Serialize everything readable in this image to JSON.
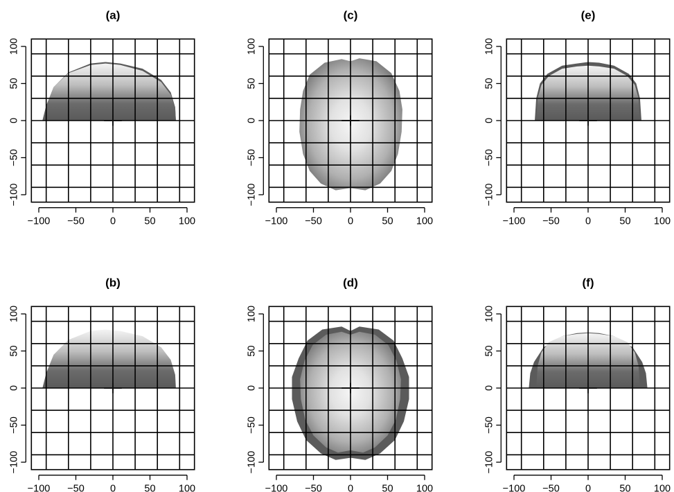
{
  "figure": {
    "panels": [
      {
        "title": "(a)",
        "view": "lateral"
      },
      {
        "title": "(b)",
        "view": "lateral"
      },
      {
        "title": "(c)",
        "view": "superior"
      },
      {
        "title": "(d)",
        "view": "superior"
      },
      {
        "title": "(e)",
        "view": "coronal"
      },
      {
        "title": "(f)",
        "view": "coronal"
      }
    ]
  },
  "chart_data": [
    {
      "type": "other",
      "panel": "(a)",
      "title": "(a)",
      "xlim": [
        -110,
        110
      ],
      "ylim": [
        -110,
        110
      ],
      "x_ticks": [
        -100,
        -50,
        0,
        50,
        100
      ],
      "y_ticks": [
        -100,
        -50,
        0,
        50,
        100
      ],
      "grid_x": [
        -90,
        -60,
        -30,
        0,
        30,
        60,
        90
      ],
      "grid_y": [
        -90,
        -60,
        -30,
        0,
        30,
        60,
        90
      ],
      "shape": {
        "outline": [
          [
            -95,
            0
          ],
          [
            -90,
            20
          ],
          [
            -80,
            45
          ],
          [
            -60,
            65
          ],
          [
            -30,
            77
          ],
          [
            -10,
            79
          ],
          [
            10,
            77
          ],
          [
            40,
            70
          ],
          [
            65,
            55
          ],
          [
            78,
            38
          ],
          [
            84,
            18
          ],
          [
            85,
            0
          ]
        ],
        "inner_outline": [
          [
            -95,
            0
          ],
          [
            -90,
            20
          ],
          [
            -80,
            45
          ],
          [
            -60,
            64
          ],
          [
            -30,
            75
          ],
          [
            -10,
            77
          ],
          [
            10,
            75
          ],
          [
            40,
            67
          ],
          [
            65,
            52
          ],
          [
            78,
            35
          ],
          [
            84,
            16
          ],
          [
            85,
            0
          ]
        ],
        "fill": "vertical"
      }
    },
    {
      "type": "other",
      "panel": "(b)",
      "title": "(b)",
      "xlim": [
        -110,
        110
      ],
      "ylim": [
        -110,
        110
      ],
      "x_ticks": [
        -100,
        -50,
        0,
        50,
        100
      ],
      "y_ticks": [
        -100,
        -50,
        0,
        50,
        100
      ],
      "grid_x": [
        -90,
        -60,
        -30,
        0,
        30,
        60,
        90
      ],
      "grid_y": [
        -90,
        -60,
        -30,
        0,
        30,
        60,
        90
      ],
      "shape": {
        "outline": [
          [
            -95,
            0
          ],
          [
            -90,
            20
          ],
          [
            -80,
            45
          ],
          [
            -60,
            65
          ],
          [
            -30,
            77
          ],
          [
            -10,
            79
          ],
          [
            10,
            77
          ],
          [
            40,
            70
          ],
          [
            65,
            55
          ],
          [
            78,
            38
          ],
          [
            84,
            18
          ],
          [
            85,
            0
          ]
        ],
        "fill": "vertical"
      }
    },
    {
      "type": "other",
      "panel": "(c)",
      "title": "(c)",
      "xlim": [
        -110,
        110
      ],
      "ylim": [
        -110,
        110
      ],
      "x_ticks": [
        -100,
        -50,
        0,
        50,
        100
      ],
      "y_ticks": [
        -100,
        -50,
        0,
        50,
        100
      ],
      "grid_x": [
        -90,
        -60,
        -30,
        0,
        30,
        60,
        90
      ],
      "grid_y": [
        -90,
        -60,
        -30,
        0,
        30,
        60,
        90
      ],
      "shape": {
        "outline": [
          [
            0,
            80
          ],
          [
            12,
            84
          ],
          [
            35,
            80
          ],
          [
            55,
            64
          ],
          [
            66,
            40
          ],
          [
            70,
            15
          ],
          [
            69,
            -15
          ],
          [
            64,
            -45
          ],
          [
            55,
            -68
          ],
          [
            40,
            -85
          ],
          [
            20,
            -94
          ],
          [
            0,
            -91
          ],
          [
            -20,
            -94
          ],
          [
            -40,
            -85
          ],
          [
            -55,
            -68
          ],
          [
            -64,
            -45
          ],
          [
            -69,
            -15
          ],
          [
            -68,
            15
          ],
          [
            -64,
            40
          ],
          [
            -55,
            62
          ],
          [
            -35,
            78
          ],
          [
            -12,
            83
          ]
        ],
        "fill": "radial"
      }
    },
    {
      "type": "other",
      "panel": "(d)",
      "title": "(d)",
      "xlim": [
        -110,
        110
      ],
      "ylim": [
        -110,
        110
      ],
      "x_ticks": [
        -100,
        -50,
        0,
        50,
        100
      ],
      "y_ticks": [
        -100,
        -50,
        0,
        50,
        100
      ],
      "grid_x": [
        -90,
        -60,
        -30,
        0,
        30,
        60,
        90
      ],
      "grid_y": [
        -90,
        -60,
        -30,
        0,
        30,
        60,
        90
      ],
      "shape": {
        "outline": [
          [
            0,
            77
          ],
          [
            12,
            83
          ],
          [
            38,
            79
          ],
          [
            58,
            64
          ],
          [
            70,
            40
          ],
          [
            79,
            15
          ],
          [
            79,
            -15
          ],
          [
            72,
            -45
          ],
          [
            60,
            -70
          ],
          [
            40,
            -88
          ],
          [
            20,
            -97
          ],
          [
            0,
            -94
          ],
          [
            -20,
            -97
          ],
          [
            -40,
            -88
          ],
          [
            -60,
            -70
          ],
          [
            -72,
            -45
          ],
          [
            -79,
            -15
          ],
          [
            -79,
            15
          ],
          [
            -70,
            40
          ],
          [
            -58,
            64
          ],
          [
            -38,
            79
          ],
          [
            -12,
            83
          ]
        ],
        "inner_outline": [
          [
            0,
            72
          ],
          [
            12,
            76
          ],
          [
            33,
            72
          ],
          [
            51,
            58
          ],
          [
            62,
            37
          ],
          [
            68,
            12
          ],
          [
            67,
            -15
          ],
          [
            61,
            -43
          ],
          [
            50,
            -64
          ],
          [
            33,
            -80
          ],
          [
            17,
            -87
          ],
          [
            0,
            -84
          ],
          [
            -17,
            -87
          ],
          [
            -33,
            -80
          ],
          [
            -50,
            -64
          ],
          [
            -61,
            -43
          ],
          [
            -67,
            -15
          ],
          [
            -68,
            12
          ],
          [
            -62,
            37
          ],
          [
            -51,
            58
          ],
          [
            -33,
            72
          ],
          [
            -12,
            76
          ]
        ],
        "fill": "radial"
      }
    },
    {
      "type": "other",
      "panel": "(e)",
      "title": "(e)",
      "xlim": [
        -110,
        110
      ],
      "ylim": [
        -110,
        110
      ],
      "x_ticks": [
        -100,
        -50,
        0,
        50,
        100
      ],
      "y_ticks": [
        -100,
        -50,
        0,
        50,
        100
      ],
      "grid_x": [
        -90,
        -60,
        -30,
        0,
        30,
        60,
        90
      ],
      "grid_y": [
        -90,
        -60,
        -30,
        0,
        30,
        60,
        90
      ],
      "shape": {
        "outline": [
          [
            -72,
            0
          ],
          [
            -70,
            30
          ],
          [
            -65,
            50
          ],
          [
            -55,
            63
          ],
          [
            -35,
            74
          ],
          [
            -15,
            77
          ],
          [
            0,
            79
          ],
          [
            15,
            78
          ],
          [
            35,
            74
          ],
          [
            55,
            63
          ],
          [
            65,
            50
          ],
          [
            70,
            30
          ],
          [
            72,
            0
          ]
        ],
        "inner_outline": [
          [
            -70,
            0
          ],
          [
            -68,
            30
          ],
          [
            -63,
            48
          ],
          [
            -53,
            60
          ],
          [
            -35,
            70
          ],
          [
            -15,
            73
          ],
          [
            0,
            74
          ],
          [
            15,
            73
          ],
          [
            35,
            70
          ],
          [
            53,
            60
          ],
          [
            63,
            48
          ],
          [
            68,
            30
          ],
          [
            70,
            0
          ]
        ],
        "fill": "vertical"
      }
    },
    {
      "type": "other",
      "panel": "(f)",
      "title": "(f)",
      "xlim": [
        -110,
        110
      ],
      "ylim": [
        -110,
        110
      ],
      "x_ticks": [
        -100,
        -50,
        0,
        50,
        100
      ],
      "y_ticks": [
        -100,
        -50,
        0,
        50,
        100
      ],
      "grid_x": [
        -90,
        -60,
        -30,
        0,
        30,
        60,
        90
      ],
      "grid_y": [
        -90,
        -60,
        -30,
        0,
        30,
        60,
        90
      ],
      "shape": {
        "outline": [
          [
            -80,
            0
          ],
          [
            -78,
            20
          ],
          [
            -73,
            35
          ],
          [
            -60,
            55
          ],
          [
            -35,
            70
          ],
          [
            -15,
            74
          ],
          [
            0,
            75
          ],
          [
            15,
            74
          ],
          [
            35,
            70
          ],
          [
            60,
            55
          ],
          [
            73,
            35
          ],
          [
            78,
            20
          ],
          [
            80,
            0
          ]
        ],
        "inner_outline": [
          [
            -70,
            0
          ],
          [
            -68,
            30
          ],
          [
            -63,
            48
          ],
          [
            -53,
            62
          ],
          [
            -35,
            70
          ],
          [
            -15,
            73
          ],
          [
            0,
            74
          ],
          [
            15,
            73
          ],
          [
            35,
            70
          ],
          [
            53,
            62
          ],
          [
            63,
            48
          ],
          [
            68,
            30
          ],
          [
            70,
            0
          ]
        ],
        "fill": "vertical"
      }
    }
  ]
}
